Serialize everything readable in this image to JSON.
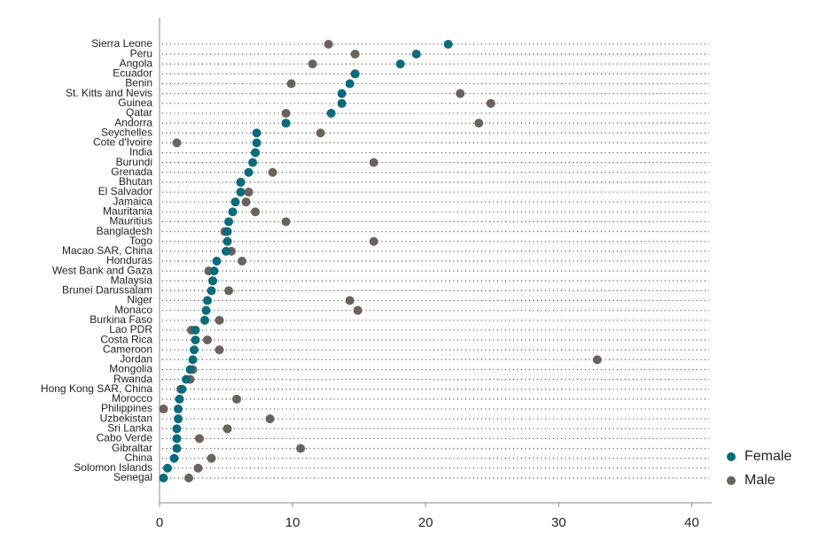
{
  "chart_data": {
    "type": "dot",
    "categories": [
      "Sierra Leone",
      "Peru",
      "Angola",
      "Ecuador",
      "Benin",
      "St. Kitts and Nevis",
      "Guinea",
      "Qatar",
      "Andorra",
      "Seychelles",
      "Cote d'Ivoire",
      "India",
      "Burundi",
      "Grenada",
      "Bhutan",
      "El Salvador",
      "Jamaica",
      "Mauritania",
      "Mauritius",
      "Bangladesh",
      "Togo",
      "Macao SAR, China",
      "Honduras",
      "West Bank and Gaza",
      "Malaysia",
      "Brunei Darussalam",
      "Niger",
      "Monaco",
      "Burkina Faso",
      "Lao PDR",
      "Costa Rica",
      "Cameroon",
      "Jordan",
      "Mongolia",
      "Rwanda",
      "Hong Kong SAR, China",
      "Morocco",
      "Philippines",
      "Uzbekistan",
      "Sri Lanka",
      "Cabo Verde",
      "Gibraltar",
      "China",
      "Solomon Islands",
      "Senegal"
    ],
    "series": [
      {
        "name": "Female",
        "color": "#0a6b7d",
        "values": [
          21.7,
          19.3,
          18.1,
          14.7,
          14.3,
          13.7,
          13.7,
          12.9,
          9.5,
          7.3,
          7.3,
          7.2,
          7.0,
          6.7,
          6.1,
          6.1,
          5.7,
          5.5,
          5.2,
          5.1,
          5.1,
          5.0,
          4.3,
          4.1,
          4.0,
          3.9,
          3.6,
          3.5,
          3.4,
          2.7,
          2.7,
          2.6,
          2.5,
          2.3,
          2.0,
          1.7,
          1.5,
          1.4,
          1.4,
          1.3,
          1.3,
          1.3,
          1.1,
          0.6,
          0.3
        ]
      },
      {
        "name": "Male",
        "color": "#6b625e",
        "values": [
          12.7,
          14.7,
          11.5,
          14.7,
          9.9,
          22.6,
          24.9,
          9.5,
          24.0,
          12.1,
          1.3,
          7.2,
          16.1,
          8.5,
          6.1,
          6.7,
          6.5,
          7.2,
          9.5,
          4.9,
          16.1,
          5.4,
          6.2,
          3.7,
          4.0,
          5.2,
          14.3,
          14.9,
          4.5,
          2.4,
          3.6,
          4.5,
          32.9,
          2.5,
          2.3,
          1.6,
          5.8,
          0.3,
          8.3,
          5.1,
          3.0,
          10.6,
          3.9,
          2.9,
          2.2
        ]
      }
    ],
    "xlim": [
      0,
      41.5
    ],
    "xticks": [
      0,
      10,
      20,
      30,
      40
    ],
    "legend": "right"
  }
}
